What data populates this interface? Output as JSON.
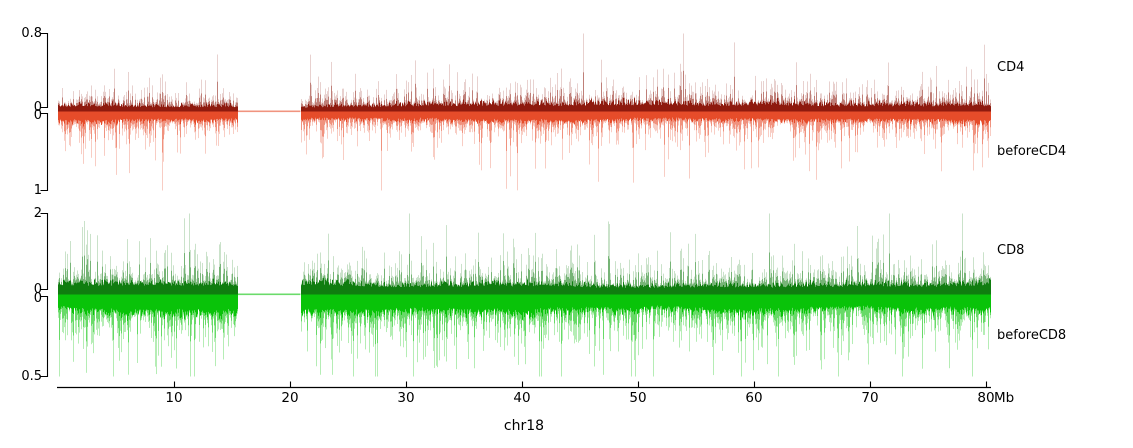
{
  "chart_data": {
    "type": "area",
    "title": "",
    "xlabel": "chr18",
    "x_unit": "Mb",
    "x_range_mb": [
      0,
      80.4
    ],
    "x_ticks_mb": [
      10,
      20,
      30,
      40,
      50,
      60,
      70,
      80
    ],
    "data_gap_mb": [
      15.5,
      20.9
    ],
    "grid": false,
    "legend": null,
    "panels": [
      {
        "tracks": [
          {
            "name": "CD4",
            "label": "CD4",
            "orientation": "up",
            "color": "#8e1a0e",
            "ylim": [
              0,
              0.8
            ],
            "ytick_labels": [
              "0.8",
              "0"
            ],
            "baseline_value": 0,
            "typical_signal": 0.12,
            "peak_signal": 0.75
          },
          {
            "name": "beforeCD4",
            "label": "beforeCD4",
            "orientation": "down",
            "color": "#e64c2a",
            "ylim": [
              0,
              1
            ],
            "ytick_labels": [
              "0",
              "1"
            ],
            "baseline_value": 0,
            "typical_signal": 0.2,
            "peak_signal": 1.0
          }
        ]
      },
      {
        "tracks": [
          {
            "name": "CD8",
            "label": "CD8",
            "orientation": "up",
            "color": "#0f7d0f",
            "ylim": [
              0,
              2
            ],
            "ytick_labels": [
              "2",
              "0"
            ],
            "baseline_value": 0,
            "typical_signal": 0.5,
            "peak_signal": 1.9
          },
          {
            "name": "beforeCD8",
            "label": "beforeCD8",
            "orientation": "down",
            "color": "#09c309",
            "ylim": [
              0,
              0.5
            ],
            "ytick_labels": [
              "0",
              "0.5"
            ],
            "baseline_value": 0,
            "typical_signal": 0.15,
            "peak_signal": 0.5
          }
        ]
      }
    ],
    "colors": {
      "axis": "#000000",
      "background": "#ffffff"
    }
  }
}
